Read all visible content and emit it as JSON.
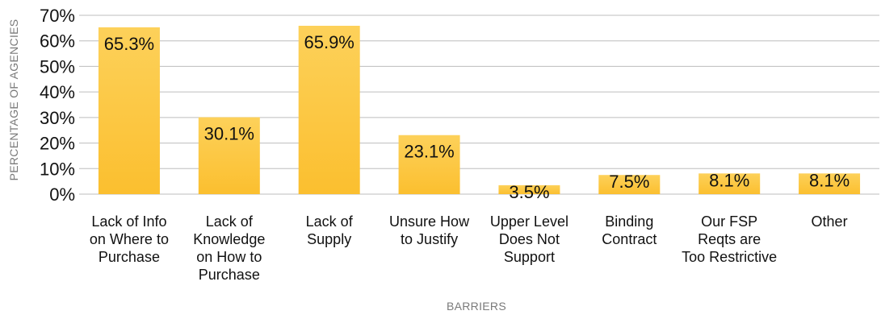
{
  "chart_data": {
    "type": "bar",
    "xlabel": "BARRIERS",
    "ylabel": "PERCENTAGE OF AGENCIES",
    "ylim": [
      0,
      70
    ],
    "yticks": [
      0,
      10,
      20,
      30,
      40,
      50,
      60,
      70
    ],
    "ytick_labels": [
      "0%",
      "10%",
      "20%",
      "30%",
      "40%",
      "50%",
      "60%",
      "70%"
    ],
    "grid": true,
    "bar_color": "#fbbf2f",
    "bar_color_light": "#fdd15a",
    "categories": [
      [
        "Lack of Info",
        "on Where to",
        "Purchase"
      ],
      [
        "Lack of",
        "Knowledge",
        "on How to",
        "Purchase"
      ],
      [
        "Lack of",
        "Supply"
      ],
      [
        "Unsure How",
        "to Justify"
      ],
      [
        "Upper Level",
        "Does Not",
        "Support"
      ],
      [
        "Binding",
        "Contract"
      ],
      [
        "Our FSP",
        "Reqts are",
        "Too Restrictive"
      ],
      [
        "Other"
      ]
    ],
    "values": [
      65.3,
      30.1,
      65.9,
      23.1,
      3.5,
      7.5,
      8.1,
      8.1
    ],
    "data_labels": [
      "65.3%",
      "30.1%",
      "65.9%",
      "23.1%",
      "3.5%",
      "7.5%",
      "8.1%",
      "8.1%"
    ]
  }
}
